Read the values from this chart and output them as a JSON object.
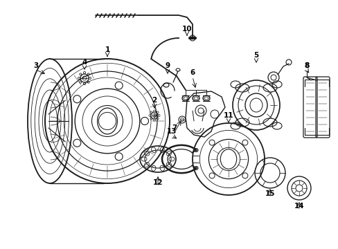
{
  "background_color": "#ffffff",
  "line_color": "#1a1a1a",
  "text_color": "#000000",
  "label_fontsize": 7.5,
  "figsize": [
    4.89,
    3.6
  ],
  "dpi": 100
}
